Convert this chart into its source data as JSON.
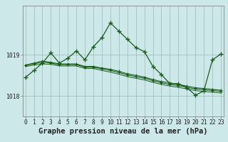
{
  "bg_color": "#cce8e8",
  "plot_bg_color": "#cce8e8",
  "line_color": "#1a5c1a",
  "grid_color": "#99bbbb",
  "xlabel": "Graphe pression niveau de la mer (hPa)",
  "xlabel_fontsize": 7.5,
  "tick_fontsize": 5.8,
  "ylim": [
    1017.5,
    1020.2
  ],
  "yticks": [
    1018,
    1019
  ],
  "hours": [
    0,
    1,
    2,
    3,
    4,
    5,
    6,
    7,
    8,
    9,
    10,
    11,
    12,
    13,
    14,
    15,
    16,
    17,
    18,
    19,
    20,
    21,
    22,
    23
  ],
  "series1": [
    1018.45,
    1018.62,
    1018.8,
    1019.05,
    1018.8,
    1018.92,
    1019.1,
    1018.88,
    1019.2,
    1019.42,
    1019.78,
    1019.58,
    1019.38,
    1019.18,
    1019.08,
    1018.72,
    1018.52,
    1018.3,
    1018.3,
    1018.2,
    1018.02,
    1018.12,
    1018.88,
    1019.02
  ],
  "series2": [
    1018.75,
    1018.8,
    1018.85,
    1018.82,
    1018.78,
    1018.78,
    1018.78,
    1018.72,
    1018.72,
    1018.68,
    1018.65,
    1018.6,
    1018.54,
    1018.5,
    1018.46,
    1018.4,
    1018.35,
    1018.32,
    1018.28,
    1018.24,
    1018.2,
    1018.18,
    1018.16,
    1018.14
  ],
  "series3": [
    1018.75,
    1018.78,
    1018.82,
    1018.8,
    1018.76,
    1018.76,
    1018.76,
    1018.7,
    1018.7,
    1018.66,
    1018.62,
    1018.57,
    1018.51,
    1018.47,
    1018.43,
    1018.37,
    1018.32,
    1018.28,
    1018.25,
    1018.21,
    1018.17,
    1018.15,
    1018.13,
    1018.11
  ],
  "series4": [
    1018.72,
    1018.75,
    1018.78,
    1018.77,
    1018.73,
    1018.73,
    1018.73,
    1018.67,
    1018.67,
    1018.62,
    1018.58,
    1018.53,
    1018.47,
    1018.43,
    1018.39,
    1018.33,
    1018.28,
    1018.24,
    1018.21,
    1018.17,
    1018.13,
    1018.11,
    1018.09,
    1018.07
  ]
}
